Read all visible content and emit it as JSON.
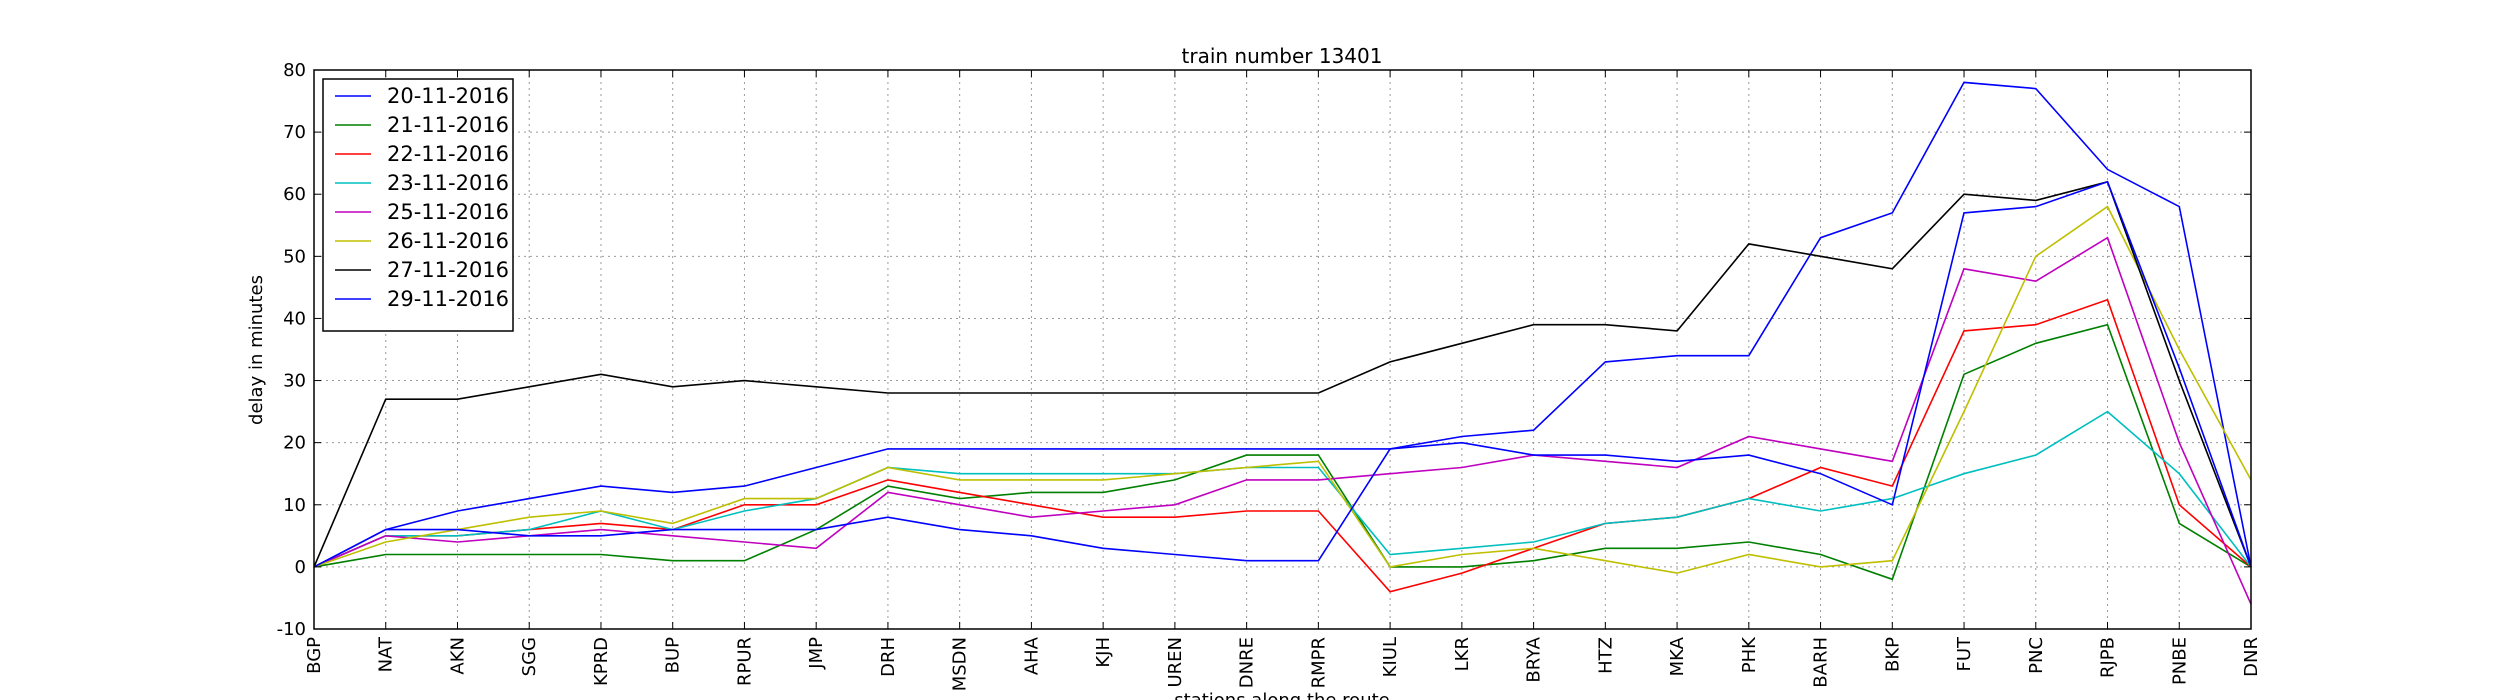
{
  "chart_data": {
    "type": "line",
    "title": "train number 13401",
    "xlabel": "stations along the route",
    "ylabel": "delay in minutes",
    "ylim": [
      -10,
      80
    ],
    "yticks": [
      -10,
      0,
      10,
      20,
      30,
      40,
      50,
      60,
      70,
      80
    ],
    "grid": true,
    "legend_position": "top-left",
    "categories": [
      "BGP",
      "NAT",
      "AKN",
      "SGG",
      "KPRD",
      "BUP",
      "RPUR",
      "JMP",
      "DRH",
      "MSDN",
      "AHA",
      "KJH",
      "UREN",
      "DNRE",
      "RMPR",
      "KIUL",
      "LKR",
      "BRYA",
      "HTZ",
      "MKA",
      "PHK",
      "BARH",
      "BKP",
      "FUT",
      "PNC",
      "RJPB",
      "PNBE",
      "DNR"
    ],
    "series": [
      {
        "name": "20-11-2016",
        "color": "#0000ff",
        "values": [
          0,
          6,
          9,
          11,
          13,
          12,
          13,
          16,
          19,
          19,
          19,
          19,
          19,
          19,
          19,
          19,
          21,
          22,
          33,
          34,
          34,
          53,
          57,
          78,
          77,
          64,
          58,
          0
        ]
      },
      {
        "name": "21-11-2016",
        "color": "#008000",
        "values": [
          0,
          2,
          2,
          2,
          2,
          1,
          1,
          6,
          13,
          11,
          12,
          12,
          14,
          18,
          18,
          0,
          0,
          1,
          3,
          3,
          4,
          2,
          -2,
          31,
          36,
          39,
          7,
          0
        ]
      },
      {
        "name": "22-11-2016",
        "color": "#ff0000",
        "values": [
          0,
          5,
          5,
          6,
          7,
          6,
          10,
          10,
          14,
          12,
          10,
          8,
          8,
          9,
          9,
          -4,
          -1,
          3,
          7,
          8,
          11,
          16,
          13,
          38,
          39,
          43,
          10,
          0
        ]
      },
      {
        "name": "23-11-2016",
        "color": "#00bfbf",
        "values": [
          0,
          5,
          5,
          6,
          9,
          6,
          9,
          11,
          16,
          15,
          15,
          15,
          15,
          16,
          16,
          2,
          3,
          4,
          7,
          8,
          11,
          9,
          11,
          15,
          18,
          25,
          15,
          0
        ]
      },
      {
        "name": "25-11-2016",
        "color": "#bf00bf",
        "values": [
          0,
          5,
          4,
          5,
          6,
          5,
          4,
          3,
          12,
          10,
          8,
          9,
          10,
          14,
          14,
          15,
          16,
          18,
          17,
          16,
          21,
          19,
          17,
          48,
          46,
          53,
          20,
          -6
        ]
      },
      {
        "name": "26-11-2016",
        "color": "#bfbf00",
        "values": [
          0,
          4,
          6,
          8,
          9,
          7,
          11,
          11,
          16,
          14,
          14,
          14,
          15,
          16,
          17,
          0,
          2,
          3,
          1,
          -1,
          2,
          0,
          1,
          25,
          50,
          58,
          35,
          14
        ]
      },
      {
        "name": "27-11-2016",
        "color": "#000000",
        "values": [
          0,
          27,
          27,
          29,
          31,
          29,
          30,
          29,
          28,
          28,
          28,
          28,
          28,
          28,
          28,
          33,
          36,
          39,
          39,
          38,
          52,
          50,
          48,
          60,
          59,
          62,
          30,
          0
        ]
      },
      {
        "name": "29-11-2016",
        "color": "#0000ff",
        "values": [
          0,
          6,
          6,
          5,
          5,
          6,
          6,
          6,
          8,
          6,
          5,
          3,
          2,
          1,
          1,
          19,
          20,
          18,
          18,
          17,
          18,
          15,
          10,
          57,
          58,
          62,
          32,
          0
        ]
      }
    ]
  }
}
